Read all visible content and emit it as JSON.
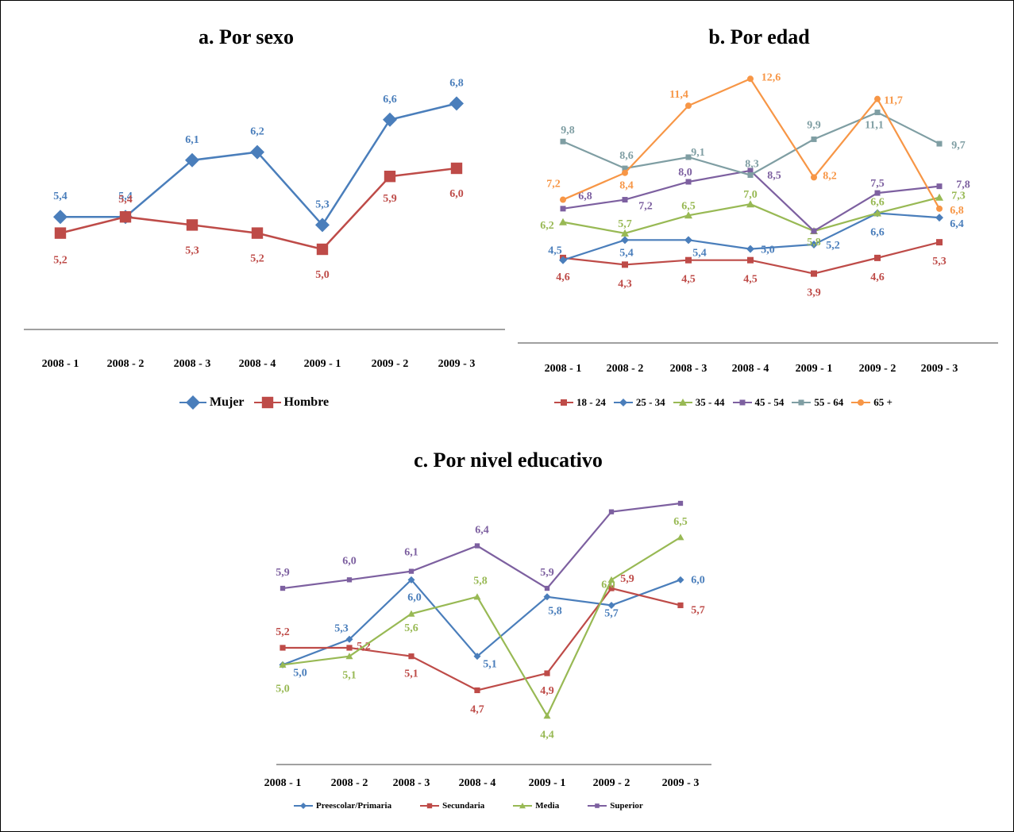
{
  "chart_data": [
    {
      "type": "line",
      "id": "sexo",
      "title": "a. Por sexo",
      "categories": [
        "2008 - 1",
        "2008 - 2",
        "2008 - 3",
        "2008 - 4",
        "2009 - 1",
        "2009 - 2",
        "2009 - 3"
      ],
      "ylim": [
        4.5,
        7.0
      ],
      "grid": false,
      "legend_position": "bottom",
      "series": [
        {
          "name": "Mujer",
          "color": "#4a7ebb",
          "marker": "diamond",
          "values": [
            5.4,
            5.4,
            6.1,
            6.2,
            5.3,
            6.6,
            6.8
          ],
          "labels": [
            "5,4",
            "5,4",
            "6,1",
            "6,2",
            "5,3",
            "6,6",
            "6,8"
          ]
        },
        {
          "name": "Hombre",
          "color": "#be4b48",
          "marker": "square",
          "values": [
            5.2,
            5.4,
            5.3,
            5.2,
            5.0,
            5.9,
            6.0
          ],
          "labels": [
            "5,2",
            "5,4",
            "5,3",
            "5,2",
            "5,0",
            "5,9",
            "6,0"
          ]
        }
      ]
    },
    {
      "type": "line",
      "id": "edad",
      "title": "b. Por edad",
      "categories": [
        "2008 - 1",
        "2008 - 2",
        "2008 - 3",
        "2008 - 4",
        "2009 - 1",
        "2009 - 2",
        "2009 - 3"
      ],
      "ylim": [
        3.0,
        13.0
      ],
      "grid": false,
      "legend_position": "bottom",
      "series": [
        {
          "name": "18 - 24",
          "color": "#be4b48",
          "marker": "square",
          "values": [
            4.6,
            4.3,
            4.5,
            4.5,
            3.9,
            4.6,
            5.3
          ],
          "labels": [
            "4,6",
            "4,3",
            "4,5",
            "4,5",
            "3,9",
            "4,6",
            "5,3"
          ]
        },
        {
          "name": "25 - 34",
          "color": "#4a7ebb",
          "marker": "diamond",
          "values": [
            4.5,
            5.4,
            5.4,
            5.0,
            5.2,
            6.6,
            6.4
          ],
          "labels": [
            "4,5",
            "5,4",
            "5,4",
            "5,0",
            "5,2",
            "6,6",
            "6,4"
          ]
        },
        {
          "name": "35 - 44",
          "color": "#98b954",
          "marker": "triangle",
          "values": [
            6.2,
            5.7,
            6.5,
            7.0,
            5.8,
            6.6,
            7.3
          ],
          "labels": [
            "6,2",
            "5,7",
            "6,5",
            "7,0",
            "5,8",
            "6,6",
            "7,3"
          ]
        },
        {
          "name": "45 - 54",
          "color": "#7d60a0",
          "marker": "x",
          "values": [
            6.8,
            7.2,
            8.0,
            8.5,
            5.8,
            7.5,
            7.8
          ],
          "labels": [
            "6,8",
            "7,2",
            "8,0",
            "8,5",
            "",
            "7,5",
            "7,8"
          ]
        },
        {
          "name": "55 - 64",
          "color": "#7f9ea3",
          "marker": "star",
          "values": [
            9.8,
            8.6,
            9.1,
            8.3,
            9.9,
            11.1,
            9.7
          ],
          "labels": [
            "9,8",
            "8,6",
            "9,1",
            "8,3",
            "9,9",
            "11,1",
            "9,7"
          ]
        },
        {
          "name": "65 +",
          "color": "#f79646",
          "marker": "circle",
          "values": [
            7.2,
            8.4,
            11.4,
            12.6,
            8.2,
            11.7,
            6.8
          ],
          "labels": [
            "7,2",
            "8,4",
            "11,4",
            "12,6",
            "8,2",
            "11,7",
            "6,8"
          ]
        }
      ]
    },
    {
      "type": "line",
      "id": "educativo",
      "title": "c. Por nivel educativo",
      "categories": [
        "2008 - 1",
        "2008 - 2",
        "2008 - 3",
        "2008 - 4",
        "2009 - 1",
        "2009 - 2",
        "2009 - 3"
      ],
      "ylim": [
        4.2,
        6.9
      ],
      "grid": false,
      "legend_position": "bottom",
      "series": [
        {
          "name": "Preescolar/Primaria",
          "color": "#4a7ebb",
          "marker": "diamond",
          "values": [
            5.0,
            5.3,
            6.0,
            5.1,
            5.8,
            5.7,
            6.0
          ],
          "labels": [
            "5,0",
            "5,3",
            "6,0",
            "5,1",
            "5,8",
            "5,7",
            "6,0"
          ]
        },
        {
          "name": "Secundaria",
          "color": "#be4b48",
          "marker": "square",
          "values": [
            5.2,
            5.2,
            5.1,
            4.7,
            4.9,
            5.9,
            5.7
          ],
          "labels": [
            "5,2",
            "5,2",
            "5,1",
            "4,7",
            "4,9",
            "5,9",
            "5,7"
          ]
        },
        {
          "name": "Media",
          "color": "#98b954",
          "marker": "triangle",
          "values": [
            5.0,
            5.1,
            5.6,
            5.8,
            4.4,
            6.0,
            6.5
          ],
          "labels": [
            "5,0",
            "5,1",
            "5,6",
            "5,8",
            "4,4",
            "6,0",
            "6,5"
          ]
        },
        {
          "name": "Superior",
          "color": "#7d60a0",
          "marker": "x",
          "values": [
            5.9,
            6.0,
            6.1,
            6.4,
            5.9,
            6.8,
            6.9
          ],
          "labels": [
            "5,9",
            "6,0",
            "6,1",
            "6,4",
            "5,9",
            "",
            ""
          ]
        }
      ]
    }
  ]
}
